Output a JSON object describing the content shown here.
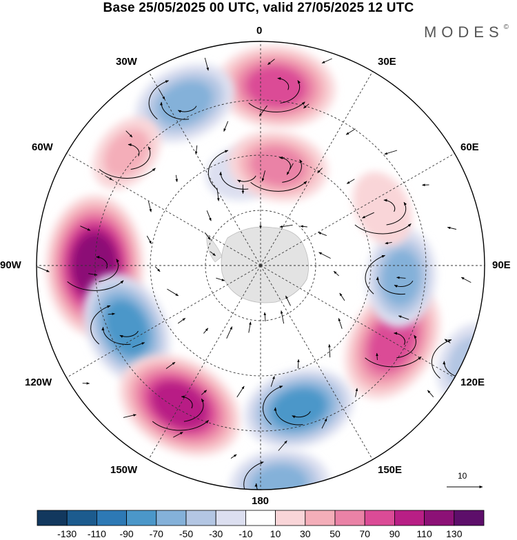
{
  "title": "Base 25/05/2025 00 UTC, valid 27/05/2025 12 UTC",
  "brand": "MODES",
  "brand_mark": "©",
  "longitude_labels": {
    "lon_0": "0",
    "lon_30e": "30E",
    "lon_60e": "60E",
    "lon_90e": "90E",
    "lon_120e": "120E",
    "lon_150e": "150E",
    "lon_180": "180",
    "lon_150w": "150W",
    "lon_120w": "120W",
    "lon_90w": "90W",
    "lon_60w": "60W",
    "lon_30w": "30W"
  },
  "vector_reference": "10",
  "colorbar": {
    "ticks": [
      "-130",
      "-110",
      "-90",
      "-70",
      "-50",
      "-30",
      "-10",
      "10",
      "30",
      "50",
      "70",
      "90",
      "110",
      "130"
    ],
    "colors": [
      "#12385e",
      "#1c5b8e",
      "#2d79b5",
      "#4b97c9",
      "#84b1d9",
      "#b3c6e3",
      "#dcdff0",
      "#ffffff",
      "#f9d5d8",
      "#f4aeb9",
      "#ea82a6",
      "#db4b96",
      "#b81f85",
      "#8c1176",
      "#5d0e6a"
    ]
  },
  "anomalies": [
    {
      "lon": 5,
      "r": 0.8,
      "value": 85
    },
    {
      "lon": -25,
      "r": 0.8,
      "value": -65
    },
    {
      "lon": -50,
      "r": 0.78,
      "value": 35
    },
    {
      "lon": -90,
      "r": 0.74,
      "value": 115
    },
    {
      "lon": -115,
      "r": 0.66,
      "value": -80
    },
    {
      "lon": -150,
      "r": 0.72,
      "value": 100
    },
    {
      "lon": 165,
      "r": 0.66,
      "value": -75
    },
    {
      "lon": 175,
      "r": 0.98,
      "value": -60
    },
    {
      "lon": 120,
      "r": 0.68,
      "value": 90
    },
    {
      "lon": 95,
      "r": 0.63,
      "value": -60
    },
    {
      "lon": 65,
      "r": 0.6,
      "value": 30
    },
    {
      "lon": 115,
      "r": 1.02,
      "value": -35
    },
    {
      "lon": -10,
      "r": 0.42,
      "value": -30
    },
    {
      "lon": 10,
      "r": 0.45,
      "value": 60
    }
  ]
}
